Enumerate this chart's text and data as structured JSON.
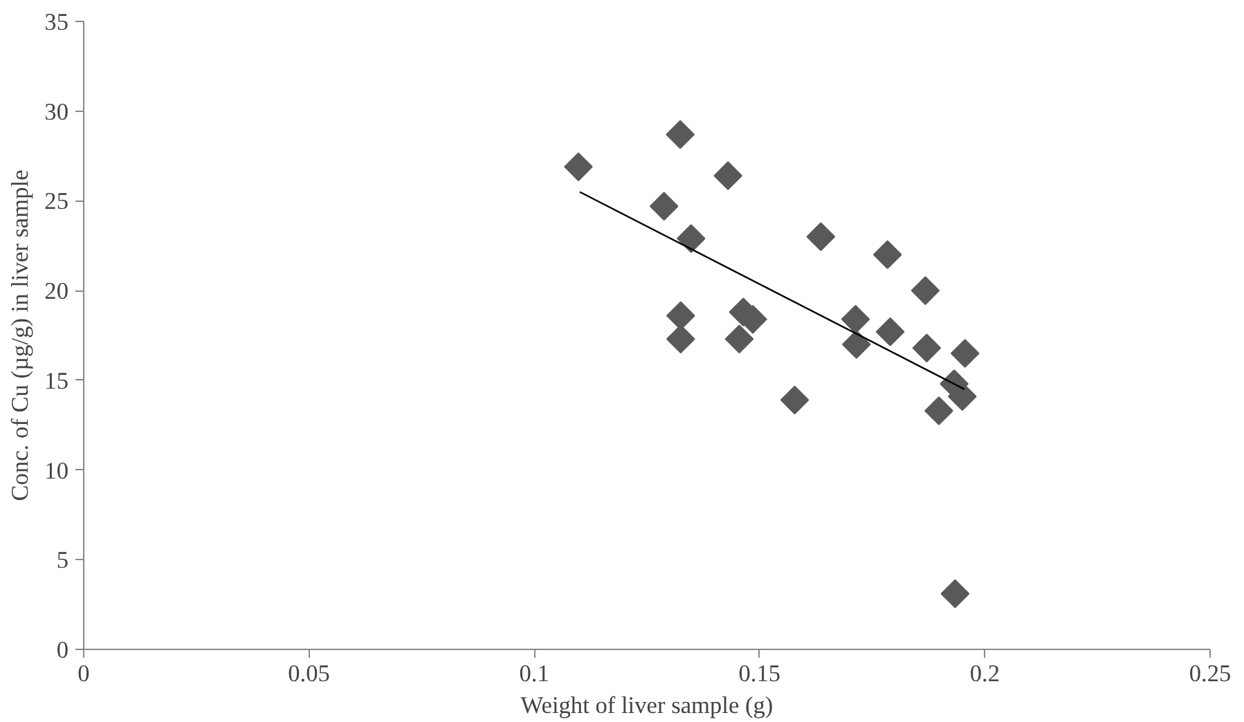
{
  "chart_data": {
    "type": "scatter",
    "xlabel": "Weight of liver sample (g)",
    "ylabel": "Conc. of Cu (µg/g) in liver sample",
    "xlim": [
      0,
      0.25
    ],
    "xticks": [
      0,
      0.05,
      0.1,
      0.15,
      0.2,
      0.25
    ],
    "ylim": [
      0,
      35
    ],
    "yticks": [
      0,
      5,
      10,
      15,
      20,
      25,
      30,
      35
    ],
    "grid": false,
    "marker": "diamond",
    "series": [
      {
        "color": "#595959",
        "x": [
          0.1098,
          0.1324,
          0.143,
          0.1288,
          0.1348,
          0.1636,
          0.1784,
          0.1868,
          0.1325,
          0.1325,
          0.1464,
          0.1485,
          0.1455,
          0.1713,
          0.1715,
          0.179,
          0.1871,
          0.1956,
          0.1578,
          0.1932,
          0.195,
          0.1898,
          0.1934
        ],
        "values": [
          26.9,
          28.7,
          26.4,
          24.7,
          22.9,
          23.0,
          22.0,
          20.0,
          18.6,
          17.3,
          18.8,
          18.4,
          17.3,
          18.4,
          17.0,
          17.7,
          16.8,
          16.5,
          13.9,
          14.8,
          14.1,
          13.3,
          3.1
        ]
      },
      {
        "type": "line",
        "color": "#000000",
        "marker": "none",
        "x": [
          0.1101,
          0.1955
        ],
        "values": [
          25.5,
          14.5
        ]
      }
    ]
  }
}
